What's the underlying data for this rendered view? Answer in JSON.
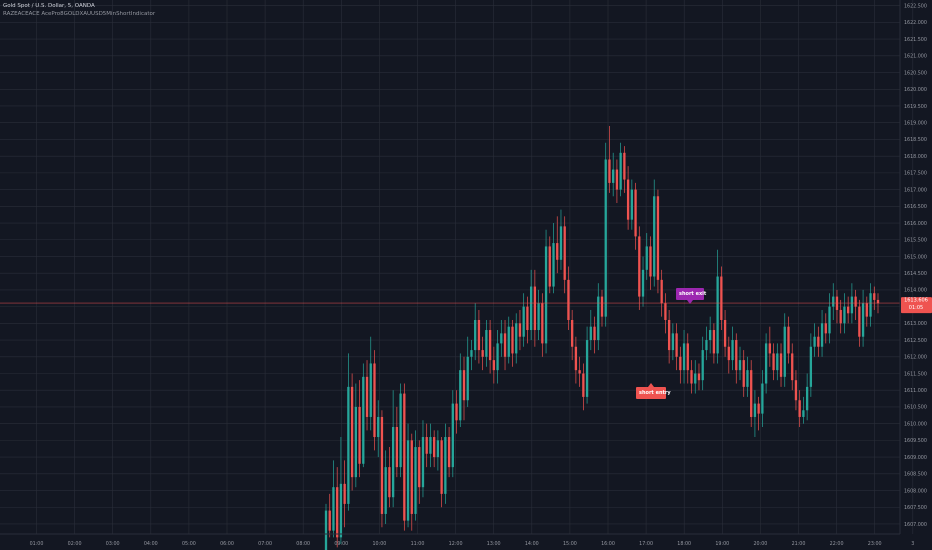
{
  "legend": {
    "symbol": "Gold Spot / U.S. Dollar, 5, OANDA",
    "indicator": "RAZEACEACE AcePro8GOLDXAUUSD5MinShortIndicator"
  },
  "signals": {
    "short_exit": "short exit",
    "short_entry": "short entry"
  },
  "last_price_tag": {
    "price": "1613.606",
    "countdown": "01:05"
  },
  "colors": {
    "background": "#131722",
    "grid": "#2a2e39",
    "up": "#26a69a",
    "down": "#ef5350",
    "price_line": "#ef5350",
    "short_exit": "#9c27b0",
    "short_entry": "#ef5350"
  },
  "chart_data": {
    "type": "candlestick",
    "x_ticks": [
      "01:00",
      "02:00",
      "03:00",
      "04:00",
      "05:00",
      "06:00",
      "07:00",
      "08:00",
      "09:00",
      "10:00",
      "11:00",
      "12:00",
      "13:00",
      "14:00",
      "15:00",
      "16:00",
      "17:00",
      "18:00",
      "19:00",
      "20:00",
      "21:00",
      "22:00",
      "23:00",
      "3"
    ],
    "y_ticks": [
      "1622.500",
      "1622.000",
      "1621.500",
      "1621.000",
      "1620.500",
      "1620.000",
      "1619.500",
      "1619.000",
      "1618.500",
      "1618.000",
      "1617.500",
      "1617.000",
      "1616.500",
      "1616.000",
      "1615.500",
      "1615.000",
      "1614.500",
      "1614.000",
      "1613.500",
      "1613.000",
      "1612.500",
      "1612.000",
      "1611.500",
      "1611.000",
      "1610.500",
      "1610.000",
      "1609.500",
      "1609.000",
      "1608.500",
      "1608.000",
      "1607.500",
      "1607.000"
    ],
    "ylim": [
      1606.7,
      1622.55
    ],
    "last_price": 1613.606,
    "candles": [
      [
        1606.2,
        1607.4,
        1606.0,
        1607.6
      ],
      [
        1607.4,
        1606.8,
        1606.6,
        1607.9
      ],
      [
        1606.8,
        1608.1,
        1606.6,
        1608.9
      ],
      [
        1608.1,
        1606.6,
        1606.3,
        1608.7
      ],
      [
        1606.6,
        1608.2,
        1606.4,
        1609.6
      ],
      [
        1608.2,
        1607.6,
        1606.9,
        1608.9
      ],
      [
        1607.6,
        1611.1,
        1607.4,
        1612.1
      ],
      [
        1611.1,
        1608.4,
        1608.0,
        1611.5
      ],
      [
        1608.4,
        1610.5,
        1608.1,
        1611.2
      ],
      [
        1610.5,
        1608.8,
        1608.4,
        1611.3
      ],
      [
        1608.8,
        1611.4,
        1608.7,
        1611.8
      ],
      [
        1611.4,
        1610.2,
        1609.8,
        1611.9
      ],
      [
        1610.2,
        1611.8,
        1609.8,
        1612.6
      ],
      [
        1611.8,
        1609.6,
        1609.2,
        1612.2
      ],
      [
        1609.6,
        1610.2,
        1609.0,
        1610.7
      ],
      [
        1610.2,
        1607.3,
        1606.9,
        1610.4
      ],
      [
        1607.3,
        1608.7,
        1607.0,
        1609.2
      ],
      [
        1608.7,
        1607.8,
        1607.5,
        1609.3
      ],
      [
        1607.8,
        1609.9,
        1607.5,
        1611.0
      ],
      [
        1609.9,
        1608.7,
        1608.4,
        1610.5
      ],
      [
        1608.7,
        1610.9,
        1608.4,
        1611.2
      ],
      [
        1610.9,
        1607.1,
        1606.8,
        1611.2
      ],
      [
        1607.1,
        1609.5,
        1606.9,
        1610.0
      ],
      [
        1609.5,
        1607.3,
        1606.8,
        1609.7
      ],
      [
        1607.3,
        1609.3,
        1607.1,
        1609.8
      ],
      [
        1609.3,
        1608.1,
        1607.6,
        1609.5
      ],
      [
        1608.1,
        1609.6,
        1607.8,
        1610.1
      ],
      [
        1609.6,
        1609.1,
        1608.7,
        1610.0
      ],
      [
        1609.1,
        1609.6,
        1608.7,
        1610.0
      ],
      [
        1609.6,
        1609.0,
        1608.7,
        1609.8
      ],
      [
        1609.0,
        1609.5,
        1608.6,
        1609.8
      ],
      [
        1609.5,
        1607.9,
        1607.5,
        1609.6
      ],
      [
        1607.9,
        1609.6,
        1607.6,
        1610.0
      ],
      [
        1609.6,
        1608.7,
        1608.4,
        1609.9
      ],
      [
        1608.7,
        1610.6,
        1608.4,
        1611.0
      ],
      [
        1610.6,
        1610.1,
        1609.7,
        1611.0
      ],
      [
        1610.1,
        1611.6,
        1609.9,
        1612.1
      ],
      [
        1611.6,
        1610.7,
        1610.1,
        1612.0
      ],
      [
        1610.7,
        1612.0,
        1610.5,
        1612.6
      ],
      [
        1612.0,
        1612.2,
        1611.6,
        1612.5
      ],
      [
        1612.2,
        1613.1,
        1611.9,
        1613.6
      ],
      [
        1613.1,
        1612.2,
        1611.8,
        1613.4
      ],
      [
        1612.2,
        1612.0,
        1611.6,
        1612.6
      ],
      [
        1612.0,
        1612.8,
        1611.7,
        1613.1
      ],
      [
        1612.8,
        1611.9,
        1611.5,
        1613.1
      ],
      [
        1611.9,
        1611.6,
        1611.2,
        1612.3
      ],
      [
        1611.6,
        1612.4,
        1611.2,
        1612.8
      ],
      [
        1612.4,
        1612.7,
        1612.0,
        1613.1
      ],
      [
        1612.7,
        1612.0,
        1611.6,
        1613.1
      ],
      [
        1612.0,
        1612.9,
        1611.8,
        1613.2
      ],
      [
        1612.9,
        1612.1,
        1611.7,
        1613.1
      ],
      [
        1612.1,
        1613.0,
        1611.8,
        1613.3
      ],
      [
        1613.0,
        1612.6,
        1612.2,
        1613.4
      ],
      [
        1612.6,
        1613.5,
        1612.3,
        1613.9
      ],
      [
        1613.5,
        1612.8,
        1612.4,
        1613.8
      ],
      [
        1612.8,
        1614.1,
        1612.5,
        1614.6
      ],
      [
        1614.1,
        1612.8,
        1612.3,
        1614.6
      ],
      [
        1612.8,
        1613.6,
        1612.5,
        1614.0
      ],
      [
        1613.6,
        1612.4,
        1612.0,
        1613.9
      ],
      [
        1612.4,
        1615.3,
        1612.1,
        1615.8
      ],
      [
        1615.3,
        1614.1,
        1613.9,
        1615.6
      ],
      [
        1614.1,
        1615.4,
        1613.9,
        1616.0
      ],
      [
        1615.4,
        1614.9,
        1614.5,
        1616.2
      ],
      [
        1614.9,
        1615.9,
        1614.6,
        1616.4
      ],
      [
        1615.9,
        1614.3,
        1613.9,
        1616.2
      ],
      [
        1614.3,
        1613.1,
        1612.8,
        1614.7
      ],
      [
        1613.1,
        1612.3,
        1611.9,
        1613.4
      ],
      [
        1612.3,
        1611.6,
        1611.2,
        1612.6
      ],
      [
        1611.6,
        1611.5,
        1611.1,
        1612.0
      ],
      [
        1611.5,
        1610.8,
        1610.4,
        1611.8
      ],
      [
        1610.8,
        1612.5,
        1610.6,
        1612.9
      ],
      [
        1612.5,
        1612.9,
        1612.2,
        1613.4
      ],
      [
        1612.9,
        1612.5,
        1612.1,
        1613.2
      ],
      [
        1612.5,
        1613.8,
        1612.2,
        1614.2
      ],
      [
        1613.8,
        1613.2,
        1612.9,
        1614.0
      ],
      [
        1613.2,
        1617.9,
        1612.9,
        1618.4
      ],
      [
        1617.9,
        1617.2,
        1616.9,
        1618.9
      ],
      [
        1617.2,
        1617.6,
        1616.8,
        1618.1
      ],
      [
        1617.6,
        1617.0,
        1616.6,
        1617.9
      ],
      [
        1617.0,
        1618.1,
        1616.8,
        1618.4
      ],
      [
        1618.1,
        1617.3,
        1616.9,
        1618.3
      ],
      [
        1617.3,
        1616.1,
        1615.8,
        1617.7
      ],
      [
        1616.1,
        1617.0,
        1615.8,
        1617.3
      ],
      [
        1617.0,
        1615.6,
        1615.2,
        1617.2
      ],
      [
        1615.6,
        1613.8,
        1613.4,
        1615.9
      ],
      [
        1613.8,
        1614.6,
        1613.5,
        1615.0
      ],
      [
        1614.6,
        1615.3,
        1614.3,
        1615.7
      ],
      [
        1615.3,
        1614.4,
        1614.0,
        1615.6
      ],
      [
        1614.4,
        1616.8,
        1614.1,
        1617.3
      ],
      [
        1616.8,
        1614.3,
        1613.9,
        1617.0
      ],
      [
        1614.3,
        1613.6,
        1613.2,
        1614.6
      ],
      [
        1613.6,
        1613.1,
        1612.7,
        1613.9
      ],
      [
        1613.1,
        1612.2,
        1611.8,
        1613.4
      ],
      [
        1612.2,
        1612.7,
        1611.9,
        1613.0
      ],
      [
        1612.7,
        1612.0,
        1611.6,
        1613.0
      ],
      [
        1612.0,
        1611.6,
        1611.2,
        1612.3
      ],
      [
        1611.6,
        1612.4,
        1611.2,
        1612.8
      ],
      [
        1612.4,
        1611.6,
        1611.2,
        1612.7
      ],
      [
        1611.6,
        1611.2,
        1610.9,
        1611.9
      ],
      [
        1611.2,
        1611.5,
        1610.9,
        1611.9
      ],
      [
        1611.5,
        1611.3,
        1611.0,
        1611.8
      ],
      [
        1611.3,
        1612.2,
        1611.0,
        1612.6
      ],
      [
        1612.2,
        1612.5,
        1611.9,
        1612.9
      ],
      [
        1612.5,
        1612.8,
        1612.1,
        1613.2
      ],
      [
        1612.8,
        1612.1,
        1611.8,
        1613.0
      ],
      [
        1612.1,
        1614.4,
        1611.8,
        1615.2
      ],
      [
        1614.4,
        1613.1,
        1612.8,
        1614.7
      ],
      [
        1613.1,
        1612.3,
        1612.0,
        1613.4
      ],
      [
        1612.3,
        1611.9,
        1611.5,
        1612.6
      ],
      [
        1611.9,
        1612.5,
        1611.6,
        1612.9
      ],
      [
        1612.5,
        1611.6,
        1611.2,
        1612.7
      ],
      [
        1611.6,
        1611.9,
        1611.3,
        1612.3
      ],
      [
        1611.9,
        1611.1,
        1610.8,
        1612.2
      ],
      [
        1611.1,
        1611.6,
        1610.8,
        1612.0
      ],
      [
        1611.6,
        1610.2,
        1609.9,
        1611.9
      ],
      [
        1610.2,
        1610.6,
        1609.6,
        1611.0
      ],
      [
        1610.6,
        1610.3,
        1609.8,
        1610.8
      ],
      [
        1610.3,
        1611.2,
        1609.9,
        1611.6
      ],
      [
        1611.2,
        1612.4,
        1610.9,
        1612.7
      ],
      [
        1612.4,
        1612.1,
        1611.7,
        1612.9
      ],
      [
        1612.1,
        1611.6,
        1611.3,
        1612.4
      ],
      [
        1611.6,
        1612.1,
        1611.3,
        1612.4
      ],
      [
        1612.1,
        1611.4,
        1611.1,
        1612.4
      ],
      [
        1611.4,
        1612.9,
        1611.1,
        1613.3
      ],
      [
        1612.9,
        1612.1,
        1611.8,
        1613.2
      ],
      [
        1612.1,
        1611.3,
        1611.0,
        1612.4
      ],
      [
        1611.3,
        1610.7,
        1610.4,
        1611.6
      ],
      [
        1610.7,
        1610.2,
        1609.9,
        1611.0
      ],
      [
        1610.2,
        1610.4,
        1610.0,
        1610.8
      ],
      [
        1610.4,
        1611.1,
        1610.1,
        1611.5
      ],
      [
        1611.1,
        1612.3,
        1610.8,
        1612.7
      ],
      [
        1612.3,
        1612.6,
        1612.0,
        1613.0
      ],
      [
        1612.6,
        1612.3,
        1612.0,
        1612.9
      ],
      [
        1612.3,
        1613.0,
        1612.0,
        1613.4
      ],
      [
        1613.0,
        1612.7,
        1612.4,
        1613.3
      ],
      [
        1612.7,
        1613.5,
        1612.4,
        1613.9
      ],
      [
        1613.5,
        1613.8,
        1613.1,
        1614.2
      ],
      [
        1613.8,
        1613.4,
        1613.0,
        1614.0
      ],
      [
        1613.4,
        1613.0,
        1612.7,
        1613.7
      ],
      [
        1613.0,
        1613.5,
        1612.7,
        1613.9
      ],
      [
        1613.5,
        1613.3,
        1613.0,
        1613.8
      ],
      [
        1613.3,
        1613.8,
        1613.0,
        1614.2
      ],
      [
        1613.8,
        1613.5,
        1613.1,
        1614.0
      ],
      [
        1613.5,
        1612.6,
        1612.3,
        1613.7
      ],
      [
        1612.6,
        1613.6,
        1612.3,
        1614.0
      ],
      [
        1613.6,
        1613.2,
        1612.9,
        1613.8
      ],
      [
        1613.2,
        1613.9,
        1612.9,
        1614.2
      ],
      [
        1613.9,
        1613.7,
        1613.4,
        1614.1
      ],
      [
        1613.7,
        1613.6,
        1613.3,
        1613.9
      ]
    ]
  }
}
